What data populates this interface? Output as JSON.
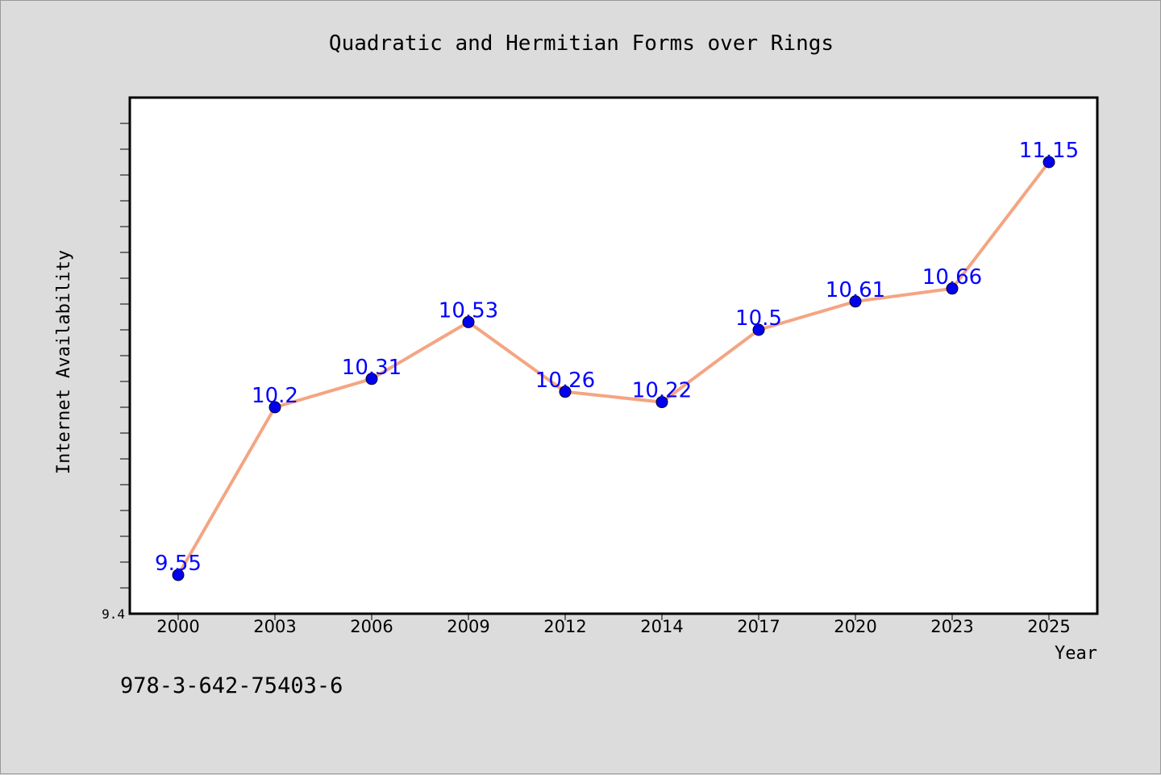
{
  "chart_data": {
    "type": "line",
    "title": "Quadratic and Hermitian Forms over Rings",
    "xlabel": "Year",
    "ylabel": "Internet Availability",
    "categories": [
      "2000",
      "2003",
      "2006",
      "2009",
      "2012",
      "2014",
      "2017",
      "2020",
      "2023",
      "2025"
    ],
    "series": [
      {
        "values": [
          9.55,
          10.2,
          10.31,
          10.53,
          10.26,
          10.22,
          10.5,
          10.61,
          10.66,
          11.15
        ],
        "labels": [
          "9.55",
          "10.2",
          "10.31",
          "10.53",
          "10.26",
          "10.22",
          "10.5",
          "10.61",
          "10.66",
          "11.15"
        ]
      }
    ],
    "ylim": [
      9.4,
      11.4
    ],
    "ytick_labels": [
      "9.4"
    ],
    "grid": false,
    "colors": {
      "line": "#f4a582",
      "marker": "#0000ee",
      "label": "#0000ff",
      "plot_bg": "#ffffff",
      "page_bg": "#dcdcdc"
    }
  },
  "footer": {
    "isbn": "978-3-642-75403-6"
  }
}
